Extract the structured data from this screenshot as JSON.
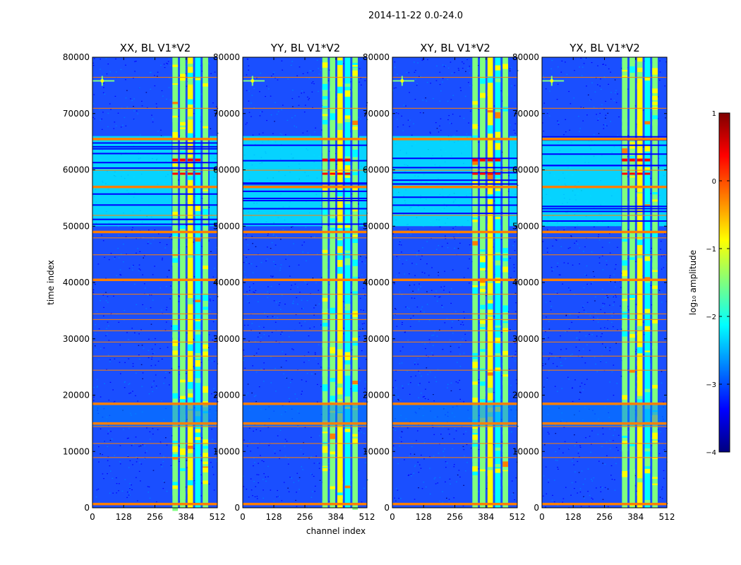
{
  "figure": {
    "suptitle": "2014-11-22 0.0-24.0"
  },
  "chart_data": [
    {
      "type": "heatmap",
      "title": "XX, BL V1*V2",
      "xlabel": "channel index",
      "ylabel": "time index",
      "xlim": [
        0,
        512
      ],
      "ylim": [
        0,
        80000
      ],
      "xticks": [
        "0",
        "128",
        "256",
        "384",
        "512"
      ],
      "yticks": [
        "0",
        "10000",
        "20000",
        "30000",
        "40000",
        "50000",
        "60000",
        "70000",
        "80000"
      ],
      "active_band": [
        325,
        480
      ],
      "strong_flag_rows": [
        700,
        15000,
        18500,
        40500,
        49000,
        57000,
        65500
      ],
      "weak_flag_rows": [
        9000,
        11500,
        14500,
        24500,
        27000,
        29500,
        31500,
        33500,
        34500,
        38000,
        45000,
        48000,
        52000,
        60000,
        71000,
        76500
      ]
    },
    {
      "type": "heatmap",
      "title": "YY, BL V1*V2",
      "xlabel": "channel index",
      "ylabel": "",
      "xlim": [
        0,
        512
      ],
      "ylim": [
        0,
        80000
      ],
      "xticks": [
        "0",
        "128",
        "256",
        "384",
        "512"
      ],
      "yticks": [
        "0",
        "10000",
        "20000",
        "30000",
        "40000",
        "50000",
        "60000",
        "70000",
        "80000"
      ],
      "active_band": [
        325,
        480
      ],
      "strong_flag_rows": [
        700,
        15000,
        18500,
        40500,
        49000,
        57000,
        65500
      ],
      "weak_flag_rows": [
        9000,
        11500,
        14500,
        24500,
        27000,
        29500,
        31500,
        33500,
        34500,
        38000,
        45000,
        48000,
        52000,
        60000,
        71000,
        76500
      ]
    },
    {
      "type": "heatmap",
      "title": "XY, BL V1*V2",
      "xlabel": "",
      "ylabel": "",
      "xlim": [
        0,
        512
      ],
      "ylim": [
        0,
        80000
      ],
      "xticks": [
        "0",
        "128",
        "256",
        "384",
        "512"
      ],
      "yticks": [
        "0",
        "10000",
        "20000",
        "30000",
        "40000",
        "50000",
        "60000",
        "70000",
        "80000"
      ],
      "active_band": [
        325,
        480
      ],
      "strong_flag_rows": [
        700,
        15000,
        18500,
        40500,
        49000,
        57000,
        65500
      ],
      "weak_flag_rows": [
        9000,
        11500,
        14500,
        24500,
        27000,
        29500,
        31500,
        33500,
        34500,
        38000,
        45000,
        48000,
        52000,
        60000,
        71000,
        76500
      ]
    },
    {
      "type": "heatmap",
      "title": "YX, BL V1*V2",
      "xlabel": "",
      "ylabel": "",
      "xlim": [
        0,
        512
      ],
      "ylim": [
        0,
        80000
      ],
      "xticks": [
        "0",
        "128",
        "256",
        "384",
        "512"
      ],
      "yticks": [
        "0",
        "10000",
        "20000",
        "30000",
        "40000",
        "50000",
        "60000",
        "70000",
        "80000"
      ],
      "active_band": [
        325,
        480
      ],
      "strong_flag_rows": [
        700,
        15000,
        18500,
        40500,
        49000,
        57000,
        65500
      ],
      "weak_flag_rows": [
        9000,
        11500,
        14500,
        24500,
        27000,
        29500,
        31500,
        33500,
        34500,
        38000,
        45000,
        48000,
        52000,
        60000,
        71000,
        76500
      ]
    }
  ],
  "colorbar": {
    "label": "log₁₀ amplitude",
    "range": [
      -4,
      1
    ],
    "ticks": [
      "1",
      "0",
      "−1",
      "−2",
      "−3",
      "−4"
    ],
    "colormap": "jet",
    "colors": [
      "#00007f",
      "#0000ff",
      "#007fff",
      "#00ffff",
      "#7fff7f",
      "#ffff00",
      "#ff7f00",
      "#ff0000",
      "#7f0000"
    ]
  }
}
